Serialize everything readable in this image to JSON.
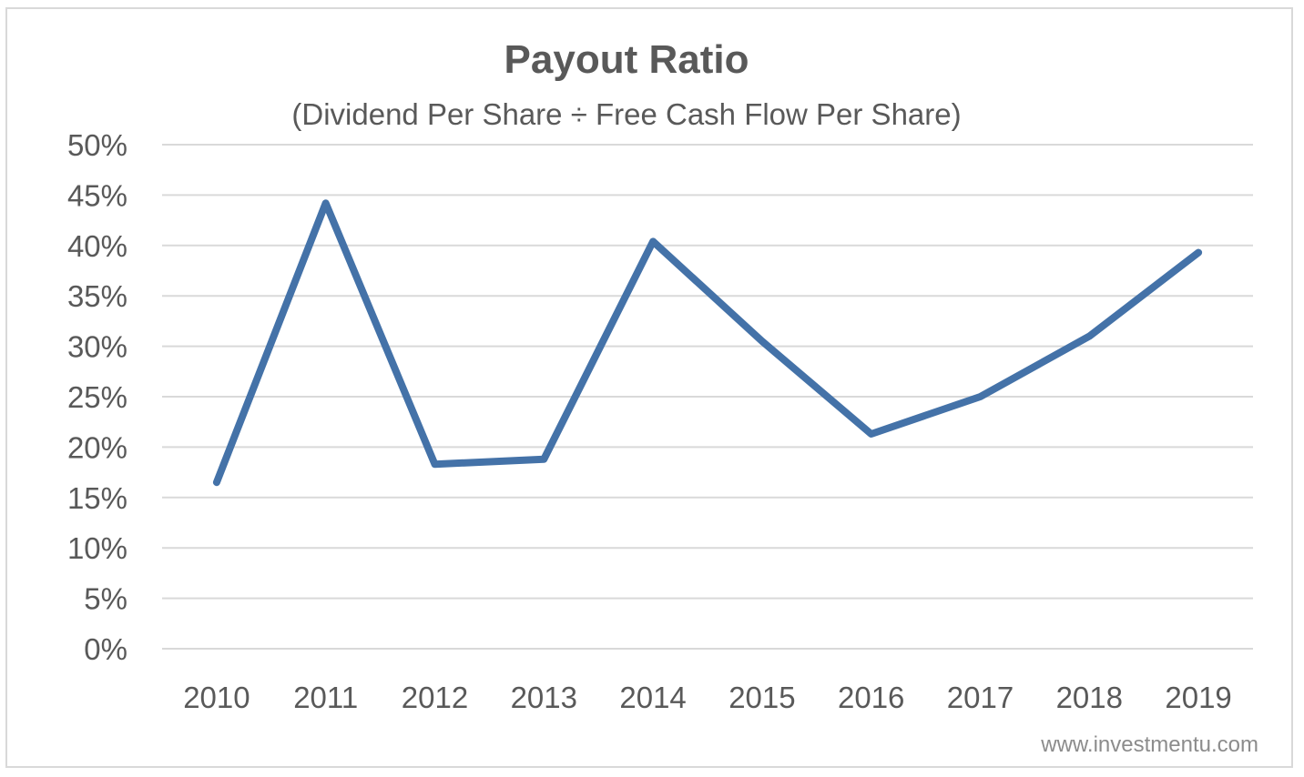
{
  "chart_data": {
    "type": "line",
    "title": "Payout Ratio",
    "subtitle": "(Dividend Per Share ÷ Free Cash Flow Per Share)",
    "categories": [
      "2010",
      "2011",
      "2012",
      "2013",
      "2014",
      "2015",
      "2016",
      "2017",
      "2018",
      "2019"
    ],
    "series": [
      {
        "values": [
          16.5,
          44.2,
          18.3,
          18.8,
          40.4,
          30.5,
          21.3,
          25.0,
          31.0,
          39.3
        ],
        "color": "#4472a8"
      }
    ],
    "ylim": [
      0,
      50
    ],
    "yticks": [
      "0%",
      "5%",
      "10%",
      "15%",
      "20%",
      "25%",
      "30%",
      "35%",
      "40%",
      "45%",
      "50%"
    ],
    "grid": true,
    "legend": "none"
  },
  "watermark": "www.investmentu.com",
  "colors": {
    "line": "#4472a8",
    "grid": "#d9d9d9",
    "text": "#595959"
  }
}
